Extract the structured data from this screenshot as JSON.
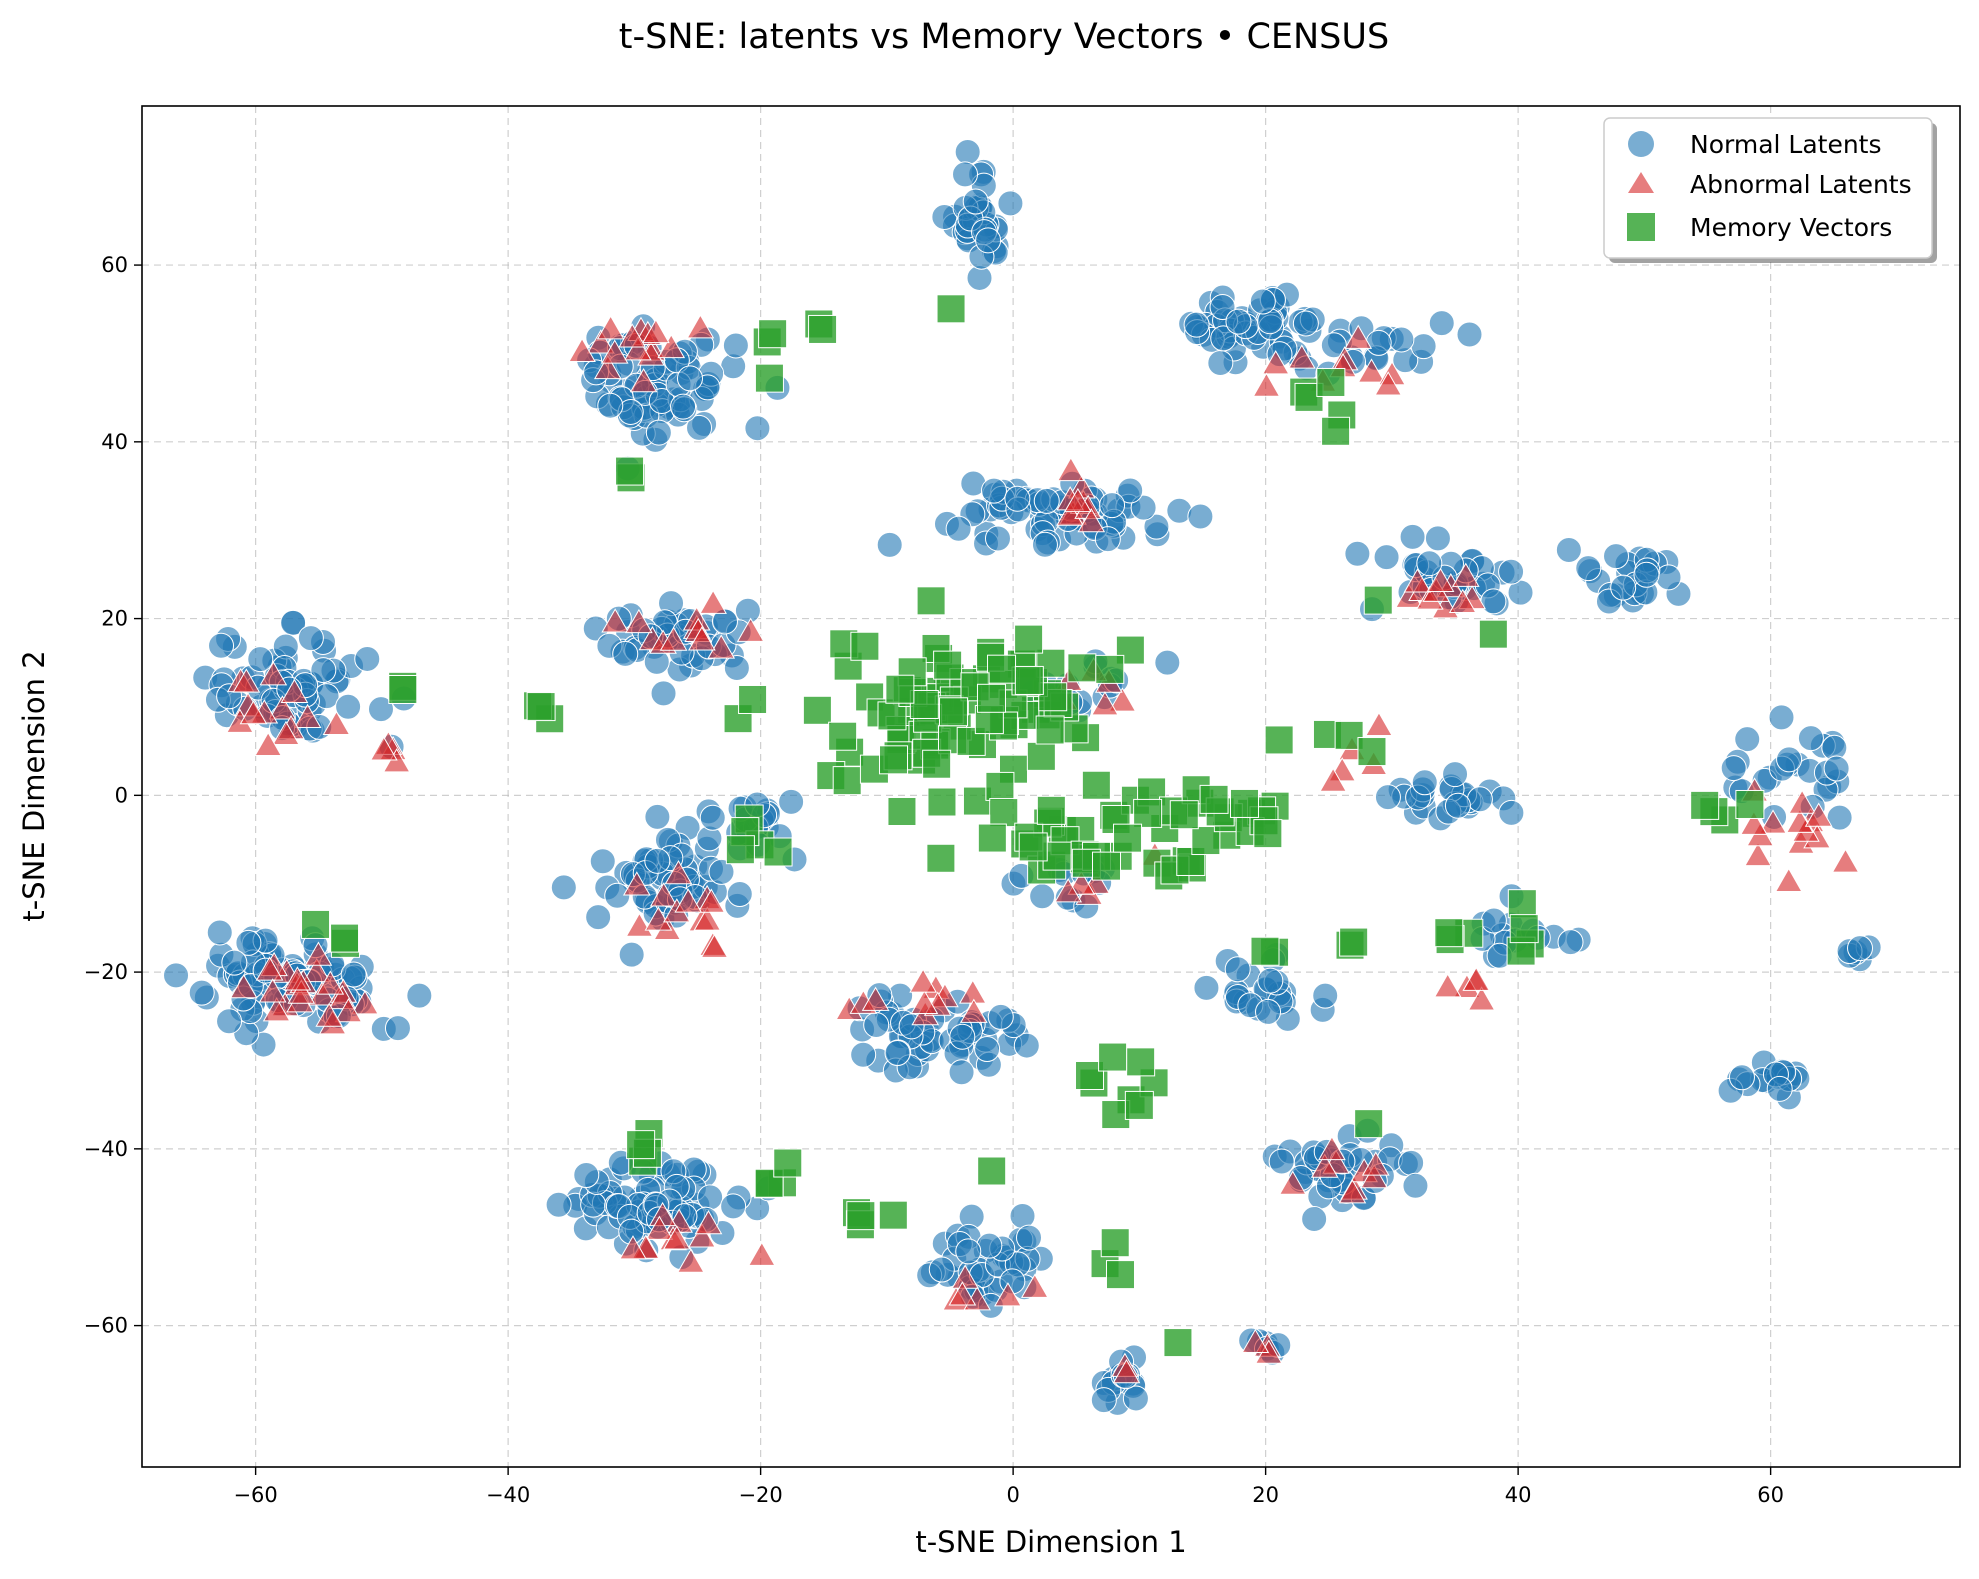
{
  "chart_data": {
    "type": "scatter",
    "title": "t-SNE: latents vs Memory Vectors • CENSUS",
    "xlabel": "t-SNE Dimension 1",
    "ylabel": "t-SNE Dimension 2",
    "xlim": [
      -69,
      75
    ],
    "ylim": [
      -76,
      78
    ],
    "xticks": [
      -60,
      -40,
      -20,
      0,
      20,
      40,
      60
    ],
    "yticks": [
      -60,
      -40,
      -20,
      0,
      20,
      40,
      60
    ],
    "xtick_labels": [
      "−60",
      "−40",
      "−20",
      "0",
      "20",
      "40",
      "60"
    ],
    "ytick_labels": [
      "−60",
      "−40",
      "−20",
      "0",
      "20",
      "40",
      "60"
    ],
    "grid": true,
    "legend_position": "top-right",
    "series": [
      {
        "name": "Normal Latents",
        "marker": "circle",
        "color": "#1f77b4",
        "clusters": [
          {
            "center": [
              -57,
              12
            ],
            "spread": [
              4.5,
              4
            ],
            "n": 70
          },
          {
            "center": [
              -57,
              -21
            ],
            "spread": [
              5,
              4
            ],
            "n": 85
          },
          {
            "center": [
              -28,
              47
            ],
            "spread": [
              4.5,
              5
            ],
            "n": 80
          },
          {
            "center": [
              -27,
              18
            ],
            "spread": [
              4,
              3
            ],
            "n": 45
          },
          {
            "center": [
              -27,
              -10
            ],
            "spread": [
              4,
              4
            ],
            "n": 65
          },
          {
            "center": [
              -28,
              -46
            ],
            "spread": [
              5,
              3.5
            ],
            "n": 80
          },
          {
            "center": [
              -3,
              65
            ],
            "spread": [
              1.8,
              4
            ],
            "n": 35
          },
          {
            "center": [
              2,
              32
            ],
            "spread": [
              7,
              2.5
            ],
            "n": 70
          },
          {
            "center": [
              -5,
              -27
            ],
            "spread": [
              5,
              4
            ],
            "n": 55
          },
          {
            "center": [
              -3,
              -53
            ],
            "spread": [
              3.5,
              3
            ],
            "n": 40
          },
          {
            "center": [
              8,
              -67
            ],
            "spread": [
              2,
              2
            ],
            "n": 15
          },
          {
            "center": [
              20,
              53
            ],
            "spread": [
              5,
              2.5
            ],
            "n": 60
          },
          {
            "center": [
              30,
              50
            ],
            "spread": [
              4,
              2
            ],
            "n": 15
          },
          {
            "center": [
              26,
              -42
            ],
            "spread": [
              4,
              3
            ],
            "n": 40
          },
          {
            "center": [
              20,
              -22
            ],
            "spread": [
              4,
              2.5
            ],
            "n": 25
          },
          {
            "center": [
              35,
              25
            ],
            "spread": [
              4,
              3
            ],
            "n": 35
          },
          {
            "center": [
              49,
              25
            ],
            "spread": [
              3,
              2.5
            ],
            "n": 25
          },
          {
            "center": [
              34,
              0
            ],
            "spread": [
              4,
              2
            ],
            "n": 25
          },
          {
            "center": [
              62,
              2
            ],
            "spread": [
              3,
              4
            ],
            "n": 25
          },
          {
            "center": [
              60,
              -32
            ],
            "spread": [
              2,
              1.5
            ],
            "n": 20
          },
          {
            "center": [
              67,
              -18
            ],
            "spread": [
              1.5,
              1
            ],
            "n": 6
          },
          {
            "center": [
              -20,
              -3
            ],
            "spread": [
              2,
              2
            ],
            "n": 15
          },
          {
            "center": [
              6,
              12
            ],
            "spread": [
              4,
              2
            ],
            "n": 15
          },
          {
            "center": [
              5,
              -10
            ],
            "spread": [
              3,
              2
            ],
            "n": 12
          },
          {
            "center": [
              40,
              -16
            ],
            "spread": [
              3,
              2
            ],
            "n": 15
          },
          {
            "center": [
              20,
              -62
            ],
            "spread": [
              1,
              0.8
            ],
            "n": 6
          }
        ]
      },
      {
        "name": "Abnormal Latents",
        "marker": "triangle",
        "color": "#d62728",
        "clusters": [
          {
            "center": [
              -58,
              9
            ],
            "spread": [
              3,
              2.5
            ],
            "n": 14
          },
          {
            "center": [
              -50,
              5
            ],
            "spread": [
              1,
              1
            ],
            "n": 4
          },
          {
            "center": [
              -56,
              -22
            ],
            "spread": [
              4,
              3
            ],
            "n": 22
          },
          {
            "center": [
              -30,
              51
            ],
            "spread": [
              4,
              3
            ],
            "n": 15
          },
          {
            "center": [
              -27,
              19
            ],
            "spread": [
              4,
              2
            ],
            "n": 12
          },
          {
            "center": [
              -26,
              -13
            ],
            "spread": [
              3,
              4
            ],
            "n": 14
          },
          {
            "center": [
              -26,
              -50
            ],
            "spread": [
              3,
              2
            ],
            "n": 12
          },
          {
            "center": [
              6,
              33
            ],
            "spread": [
              2,
              2
            ],
            "n": 9
          },
          {
            "center": [
              6,
              12
            ],
            "spread": [
              3,
              2
            ],
            "n": 7
          },
          {
            "center": [
              -6,
              -24
            ],
            "spread": [
              4,
              2
            ],
            "n": 11
          },
          {
            "center": [
              -3,
              -56
            ],
            "spread": [
              3,
              2
            ],
            "n": 6
          },
          {
            "center": [
              25,
              48
            ],
            "spread": [
              4,
              3
            ],
            "n": 10
          },
          {
            "center": [
              35,
              23
            ],
            "spread": [
              3,
              2.5
            ],
            "n": 11
          },
          {
            "center": [
              27,
              -43
            ],
            "spread": [
              3,
              2
            ],
            "n": 9
          },
          {
            "center": [
              62,
              -4
            ],
            "spread": [
              3,
              3
            ],
            "n": 14
          },
          {
            "center": [
              37,
              -22
            ],
            "spread": [
              2,
              1.5
            ],
            "n": 5
          },
          {
            "center": [
              27,
              5
            ],
            "spread": [
              2,
              3
            ],
            "n": 5
          },
          {
            "center": [
              5,
              -10
            ],
            "spread": [
              3,
              2
            ],
            "n": 5
          },
          {
            "center": [
              20,
              -62
            ],
            "spread": [
              1,
              1
            ],
            "n": 3
          },
          {
            "center": [
              9,
              -65
            ],
            "spread": [
              1,
              1
            ],
            "n": 2
          }
        ]
      },
      {
        "name": "Memory Vectors",
        "marker": "square",
        "color": "#2ca02c",
        "clusters": [
          {
            "center": [
              -5,
              10
            ],
            "spread": [
              8,
              7
            ],
            "n": 90
          },
          {
            "center": [
              8,
              -5
            ],
            "spread": [
              6,
              5
            ],
            "n": 40
          },
          {
            "center": [
              18,
              -3
            ],
            "spread": [
              3,
              2
            ],
            "n": 10
          },
          {
            "center": [
              -20,
              48
            ],
            "spread": [
              1,
              3
            ],
            "n": 3
          },
          {
            "center": [
              -30,
              37
            ],
            "spread": [
              1,
              1.2
            ],
            "n": 2
          },
          {
            "center": [
              -15,
              53
            ],
            "spread": [
              0.5,
              0.5
            ],
            "n": 2
          },
          {
            "center": [
              -5,
              55
            ],
            "spread": [
              0.5,
              0.5
            ],
            "n": 1
          },
          {
            "center": [
              25,
              45
            ],
            "spread": [
              2,
              3
            ],
            "n": 5
          },
          {
            "center": [
              -36,
              10
            ],
            "spread": [
              2,
              1
            ],
            "n": 3
          },
          {
            "center": [
              -48,
              12
            ],
            "spread": [
              2,
              0.5
            ],
            "n": 2
          },
          {
            "center": [
              -52,
              -17
            ],
            "spread": [
              4,
              2
            ],
            "n": 3
          },
          {
            "center": [
              -29,
              -38
            ],
            "spread": [
              0.5,
              4
            ],
            "n": 4
          },
          {
            "center": [
              -18,
              -44
            ],
            "spread": [
              2,
              3
            ],
            "n": 4
          },
          {
            "center": [
              -13,
              -48
            ],
            "spread": [
              2,
              1
            ],
            "n": 4
          },
          {
            "center": [
              9,
              -32
            ],
            "spread": [
              2,
              4
            ],
            "n": 8
          },
          {
            "center": [
              -2,
              -43
            ],
            "spread": [
              0.5,
              0.5
            ],
            "n": 1
          },
          {
            "center": [
              8,
              -52
            ],
            "spread": [
              2,
              2
            ],
            "n": 3
          },
          {
            "center": [
              13,
              -62
            ],
            "spread": [
              0.5,
              0.5
            ],
            "n": 1
          },
          {
            "center": [
              29,
              -37
            ],
            "spread": [
              0.5,
              0.5
            ],
            "n": 1
          },
          {
            "center": [
              34,
              -16
            ],
            "spread": [
              2,
              1
            ],
            "n": 3
          },
          {
            "center": [
              41,
              -16
            ],
            "spread": [
              1.5,
              3
            ],
            "n": 4
          },
          {
            "center": [
              20,
              -18
            ],
            "spread": [
              2,
              1.5
            ],
            "n": 2
          },
          {
            "center": [
              28,
              -16
            ],
            "spread": [
              1,
              1
            ],
            "n": 2
          },
          {
            "center": [
              56,
              -1
            ],
            "spread": [
              1.5,
              3
            ],
            "n": 4
          },
          {
            "center": [
              38,
              18
            ],
            "spread": [
              0.5,
              0.5
            ],
            "n": 1
          },
          {
            "center": [
              29,
              22
            ],
            "spread": [
              0.5,
              0.5
            ],
            "n": 1
          },
          {
            "center": [
              24,
              5
            ],
            "spread": [
              4,
              2
            ],
            "n": 4
          },
          {
            "center": [
              -20,
              -5
            ],
            "spread": [
              2,
              2
            ],
            "n": 5
          }
        ]
      }
    ]
  }
}
